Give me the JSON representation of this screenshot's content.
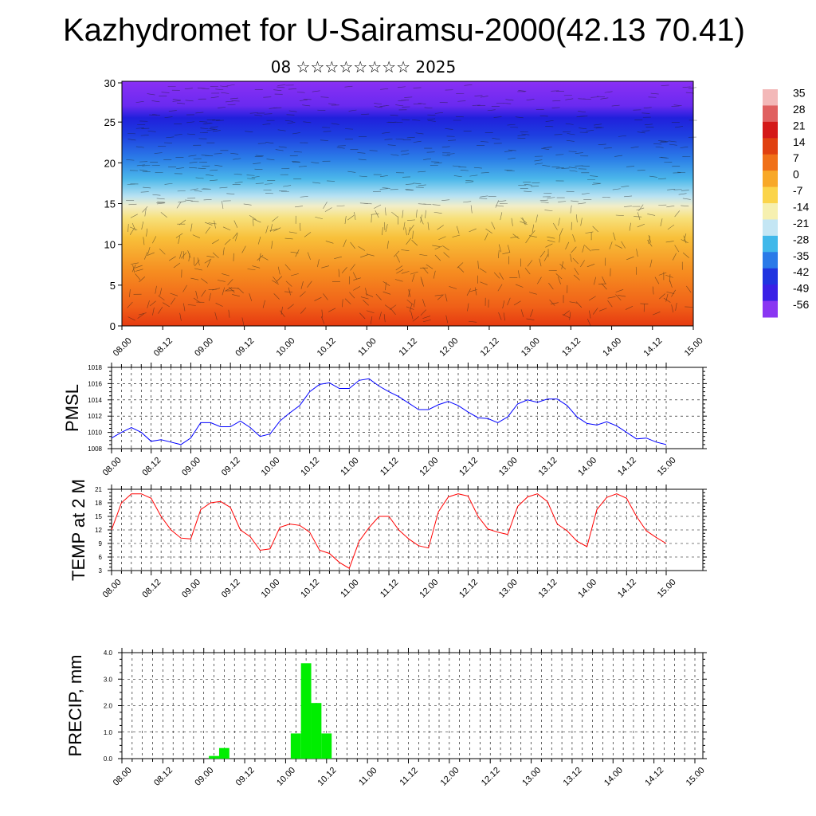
{
  "title": "Kazhydromet for U-Sairamsu-2000(42.13 70.41)",
  "subtitle": "08 ☆☆☆☆☆☆☆☆ 2025",
  "colors": {
    "pmsl_line": "#0000ff",
    "temp_line": "#ff0000",
    "precip_bar": "#00ee00",
    "colorbar": [
      "#e06a6a",
      "#d01010",
      "#e04010",
      "#f07a10",
      "#f7a820",
      "#fbd84a",
      "#f6f0a0",
      "#c8e8f2",
      "#3cb8ea",
      "#2a6ee6",
      "#2020e0",
      "#7a2af0",
      "#a040f0"
    ]
  },
  "chart_data": [
    {
      "type": "heatmap",
      "ylim": [
        0,
        30
      ],
      "yticks": [
        "0",
        "5",
        "10",
        "15",
        "20",
        "25",
        "30"
      ],
      "xticks": [
        "08.00",
        "08.12",
        "09.00",
        "09.12",
        "10.00",
        "10.12",
        "11.00",
        "11.12",
        "12.00",
        "12.12",
        "13.00",
        "13.12",
        "14.00",
        "14.12",
        "15.00"
      ],
      "colorbar_labels": [
        "35",
        "28",
        "21",
        "14",
        "7",
        "0",
        "-7",
        "-14",
        "-21",
        "-28",
        "-35",
        "-42",
        "-49",
        "-56"
      ],
      "overlay": "wind streamlines"
    },
    {
      "type": "line",
      "ylabel": "PMSL",
      "ylim": [
        1008,
        1018
      ],
      "yticks": [
        "1008",
        "1010",
        "1012",
        "1014",
        "1016",
        "1018"
      ],
      "xticks": [
        "08.00",
        "08.12",
        "09.00",
        "09.12",
        "10.00",
        "10.12",
        "11.00",
        "11.12",
        "12.00",
        "12.12",
        "13.00",
        "13.12",
        "14.00",
        "14.12",
        "15.00"
      ],
      "x_step_hours": 3,
      "values": [
        1009.3,
        1010.0,
        1010.6,
        1010.0,
        1008.9,
        1009.1,
        1008.8,
        1008.5,
        1009.3,
        1011.2,
        1011.2,
        1010.7,
        1010.7,
        1011.4,
        1010.6,
        1009.5,
        1009.8,
        1011.4,
        1012.4,
        1013.3,
        1015.0,
        1015.9,
        1016.1,
        1015.4,
        1015.4,
        1016.4,
        1016.6,
        1015.7,
        1015.0,
        1014.4,
        1013.6,
        1012.8,
        1012.8,
        1013.4,
        1013.8,
        1013.3,
        1012.5,
        1011.8,
        1011.7,
        1011.2,
        1011.9,
        1013.5,
        1014.0,
        1013.7,
        1014.1,
        1014.1,
        1013.3,
        1011.9,
        1011.1,
        1010.9,
        1011.3,
        1010.8,
        1010.0,
        1009.2,
        1009.3,
        1008.8,
        1008.5
      ]
    },
    {
      "type": "line",
      "ylabel": "TEMP at 2 M",
      "ylim": [
        3,
        21
      ],
      "yticks": [
        "3",
        "6",
        "9",
        "12",
        "15",
        "18",
        "21"
      ],
      "xticks": [
        "08.00",
        "08.12",
        "09.00",
        "09.12",
        "10.00",
        "10.12",
        "11.00",
        "11.12",
        "12.00",
        "12.12",
        "13.00",
        "13.12",
        "14.00",
        "14.12",
        "15.00"
      ],
      "x_step_hours": 3,
      "values": [
        12.0,
        18.0,
        20.0,
        20.0,
        19.0,
        15.0,
        12.0,
        10.2,
        10.0,
        16.5,
        18.0,
        18.3,
        17.0,
        12.0,
        10.5,
        7.5,
        7.8,
        12.6,
        13.3,
        13.0,
        11.5,
        7.5,
        6.8,
        4.8,
        3.5,
        9.5,
        12.5,
        15.0,
        15.0,
        12.0,
        10.0,
        8.5,
        8.0,
        16.0,
        19.3,
        20.0,
        19.5,
        15.0,
        12.2,
        11.5,
        11.0,
        17.2,
        19.3,
        20.0,
        18.3,
        13.3,
        11.8,
        9.5,
        8.3,
        16.5,
        19.2,
        20.0,
        19.0,
        15.0,
        11.8,
        10.3,
        9.0
      ]
    },
    {
      "type": "bar",
      "ylabel": "PRECIP, mm",
      "ylim": [
        0,
        4
      ],
      "yticks": [
        "0.0",
        "1.0",
        "2.0",
        "3.0",
        "4.0"
      ],
      "xticks": [
        "08.00",
        "08.12",
        "09.00",
        "09.12",
        "10.00",
        "10.12",
        "11.00",
        "11.12",
        "12.00",
        "12.12",
        "13.00",
        "13.12",
        "14.00",
        "14.12",
        "15.00"
      ],
      "x_step_hours": 3,
      "values": [
        0,
        0,
        0,
        0,
        0,
        0,
        0,
        0,
        0,
        0.1,
        0.4,
        0,
        0,
        0,
        0,
        0,
        0,
        0.95,
        3.6,
        2.1,
        0.95,
        0,
        0,
        0,
        0,
        0,
        0,
        0,
        0,
        0,
        0,
        0,
        0,
        0,
        0,
        0,
        0,
        0,
        0,
        0,
        0,
        0,
        0,
        0,
        0,
        0,
        0,
        0,
        0,
        0,
        0,
        0,
        0,
        0,
        0,
        0
      ]
    }
  ]
}
